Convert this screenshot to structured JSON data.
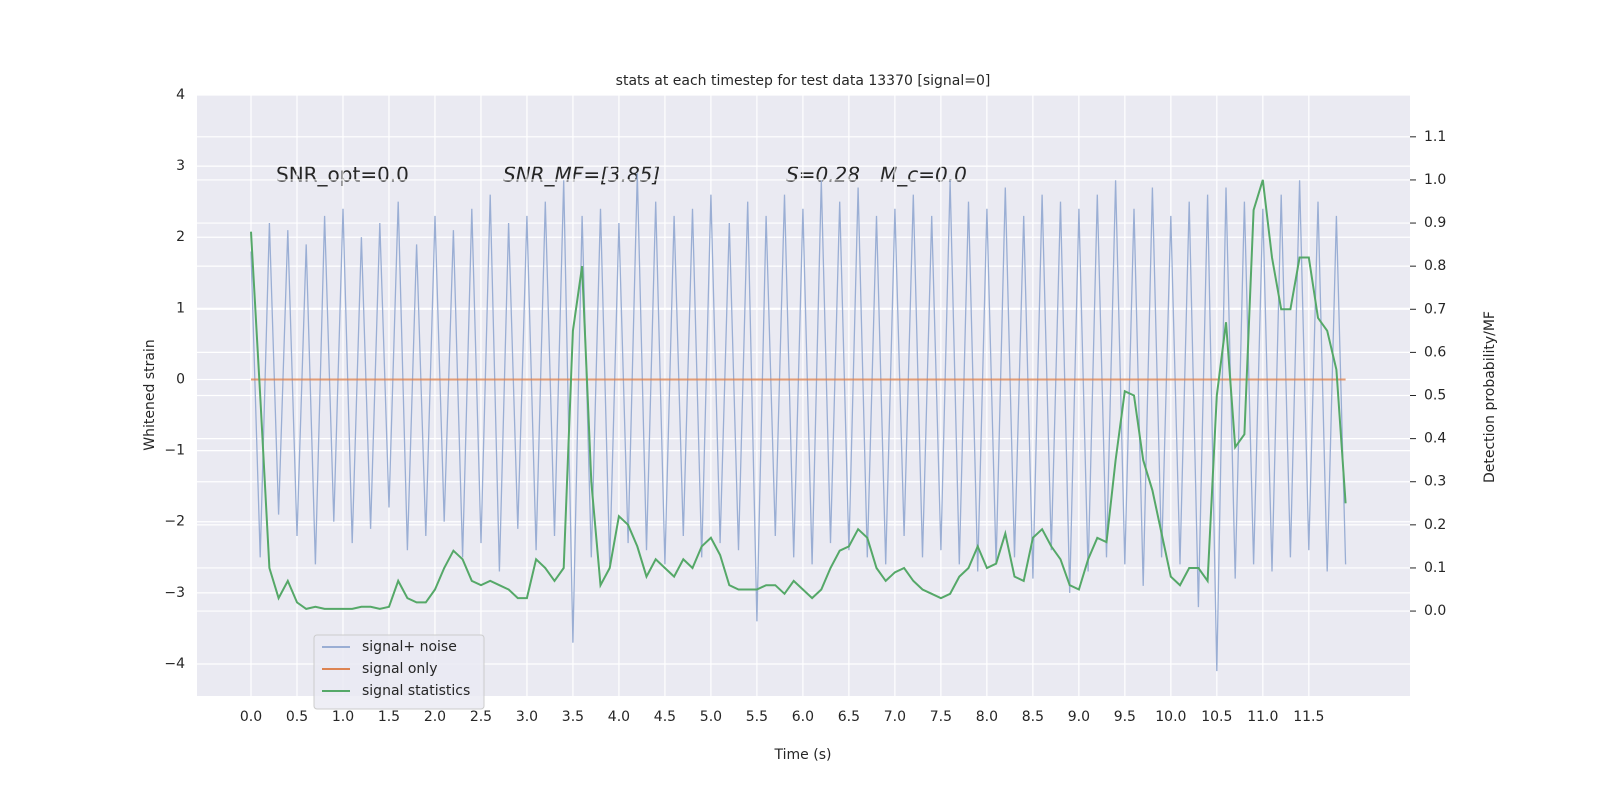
{
  "chart_data": {
    "type": "line",
    "title": "stats at each timestep for test data 13370 [signal=0]",
    "x_label": "Time (s)",
    "y_label": "Whitened strain",
    "y2_label": "Detection probability/MF",
    "annotations": [
      "SNR_opt=0.0",
      "SNR_MF=[3.85]",
      "S=0.28",
      "M_c=0.0"
    ],
    "legend": "lower left",
    "grid": true,
    "xlim": [
      -0.587,
      12.6
    ],
    "ylim": [
      -4.45,
      4.0
    ],
    "y2lim": [
      -0.197,
      1.197
    ],
    "xticks": [
      {
        "value": 0,
        "label": "0.0"
      },
      {
        "value": 0.5,
        "label": "0.5"
      },
      {
        "value": 1,
        "label": "1.0"
      },
      {
        "value": 1.5,
        "label": "1.5"
      },
      {
        "value": 2,
        "label": "2.0"
      },
      {
        "value": 2.5,
        "label": "2.5"
      },
      {
        "value": 3,
        "label": "3.0"
      },
      {
        "value": 3.5,
        "label": "3.5"
      },
      {
        "value": 4,
        "label": "4.0"
      },
      {
        "value": 4.5,
        "label": "4.5"
      },
      {
        "value": 5,
        "label": "5.0"
      },
      {
        "value": 5.5,
        "label": "5.5"
      },
      {
        "value": 6,
        "label": "6.0"
      },
      {
        "value": 6.5,
        "label": "6.5"
      },
      {
        "value": 7,
        "label": "7.0"
      },
      {
        "value": 7.5,
        "label": "7.5"
      },
      {
        "value": 8,
        "label": "8.0"
      },
      {
        "value": 8.5,
        "label": "8.5"
      },
      {
        "value": 9,
        "label": "9.0"
      },
      {
        "value": 9.5,
        "label": "9.5"
      },
      {
        "value": 10,
        "label": "10.0"
      },
      {
        "value": 10.5,
        "label": "10.5"
      },
      {
        "value": 11,
        "label": "11.0"
      },
      {
        "value": 11.5,
        "label": "11.5"
      }
    ],
    "yticks": [
      {
        "value": -4,
        "label": "−4"
      },
      {
        "value": -3,
        "label": "−3"
      },
      {
        "value": -2,
        "label": "−2"
      },
      {
        "value": -1,
        "label": "−1"
      },
      0,
      1,
      2,
      3,
      4
    ],
    "y2ticks": [
      {
        "value": 0,
        "label": "0.0"
      },
      {
        "value": 0.1,
        "label": "0.1"
      },
      {
        "value": 0.2,
        "label": "0.2"
      },
      {
        "value": 0.3,
        "label": "0.3"
      },
      {
        "value": 0.4,
        "label": "0.4"
      },
      {
        "value": 0.5,
        "label": "0.5"
      },
      {
        "value": 0.6,
        "label": "0.6"
      },
      {
        "value": 0.7,
        "label": "0.7"
      },
      {
        "value": 0.8,
        "label": "0.8"
      },
      {
        "value": 0.9,
        "label": "0.9"
      },
      {
        "value": 1,
        "label": "1.0"
      },
      {
        "value": 1.1,
        "label": "1.1"
      }
    ],
    "x": [
      0,
      0.1,
      0.2,
      0.3,
      0.4,
      0.5,
      0.6,
      0.7,
      0.8,
      0.9,
      1,
      1.1,
      1.2,
      1.3,
      1.4,
      1.5,
      1.6,
      1.7,
      1.8,
      1.9,
      2,
      2.1,
      2.2,
      2.3,
      2.4,
      2.5,
      2.6,
      2.7,
      2.8,
      2.9,
      3,
      3.1,
      3.2,
      3.3,
      3.4,
      3.5,
      3.6,
      3.7,
      3.8,
      3.9,
      4,
      4.1,
      4.2,
      4.3,
      4.4,
      4.5,
      4.6,
      4.7,
      4.8,
      4.9,
      5,
      5.1,
      5.2,
      5.3,
      5.4,
      5.5,
      5.6,
      5.7,
      5.8,
      5.9,
      6,
      6.1,
      6.2,
      6.3,
      6.4,
      6.5,
      6.6,
      6.7,
      6.8,
      6.9,
      7,
      7.1,
      7.2,
      7.3,
      7.4,
      7.5,
      7.6,
      7.7,
      7.8,
      7.9,
      8,
      8.1,
      8.2,
      8.3,
      8.4,
      8.5,
      8.6,
      8.7,
      8.8,
      8.9,
      9,
      9.1,
      9.2,
      9.3,
      9.4,
      9.5,
      9.6,
      9.7,
      9.8,
      9.9,
      10,
      10.1,
      10.2,
      10.3,
      10.4,
      10.5,
      10.6,
      10.7,
      10.8,
      10.9,
      11,
      11.1,
      11.2,
      11.3,
      11.4,
      11.5,
      11.6,
      11.7,
      11.8,
      11.9
    ],
    "series": [
      {
        "name": "signal+ noise",
        "color": "#9aaed4",
        "values": [
          1.8,
          -2.5,
          2.2,
          -1.9,
          2.1,
          -2.2,
          1.9,
          -2.6,
          2.3,
          -2.0,
          2.4,
          -2.3,
          2.0,
          -2.1,
          2.2,
          -1.8,
          2.5,
          -2.4,
          1.9,
          -2.2,
          2.3,
          -2.0,
          2.1,
          -2.5,
          2.4,
          -2.3,
          2.6,
          -2.7,
          2.2,
          -2.1,
          2.3,
          -2.4,
          2.5,
          -2.2,
          2.8,
          -3.7,
          2.3,
          -2.5,
          2.4,
          -2.6,
          2.2,
          -2.3,
          2.9,
          -2.4,
          2.5,
          -2.6,
          2.3,
          -2.2,
          2.4,
          -2.5,
          2.6,
          -2.3,
          2.2,
          -2.4,
          2.5,
          -3.4,
          2.3,
          -2.2,
          2.6,
          -2.5,
          2.4,
          -2.6,
          2.8,
          -2.3,
          2.5,
          -2.4,
          2.7,
          -2.5,
          2.3,
          -2.6,
          2.4,
          -2.2,
          2.6,
          -2.5,
          2.3,
          -2.4,
          2.8,
          -2.6,
          2.5,
          -2.7,
          2.4,
          -2.6,
          2.7,
          -2.5,
          2.3,
          -2.8,
          2.6,
          -2.4,
          2.5,
          -3.0,
          2.4,
          -2.7,
          2.6,
          -2.5,
          2.8,
          -2.6,
          2.4,
          -2.9,
          2.7,
          -2.5,
          2.3,
          -2.6,
          2.5,
          -3.2,
          2.6,
          -4.1,
          2.7,
          -2.8,
          2.5,
          -2.6,
          2.4,
          -2.7,
          2.6,
          -2.5,
          2.8,
          -2.4,
          2.5,
          -2.7,
          2.3,
          -2.6
        ]
      },
      {
        "name": "signal only",
        "color": "#dd8452",
        "values": [
          0,
          0,
          0,
          0,
          0,
          0,
          0,
          0,
          0,
          0,
          0,
          0,
          0,
          0,
          0,
          0,
          0,
          0,
          0,
          0,
          0,
          0,
          0,
          0,
          0,
          0,
          0,
          0,
          0,
          0,
          0,
          0,
          0,
          0,
          0,
          0,
          0,
          0,
          0,
          0,
          0,
          0,
          0,
          0,
          0,
          0,
          0,
          0,
          0,
          0,
          0,
          0,
          0,
          0,
          0,
          0,
          0,
          0,
          0,
          0,
          0,
          0,
          0,
          0,
          0,
          0,
          0,
          0,
          0,
          0,
          0,
          0,
          0,
          0,
          0,
          0,
          0,
          0,
          0,
          0,
          0,
          0,
          0,
          0,
          0,
          0,
          0,
          0,
          0,
          0,
          0,
          0,
          0,
          0,
          0,
          0,
          0,
          0,
          0,
          0,
          0,
          0,
          0,
          0,
          0,
          0,
          0,
          0,
          0,
          0,
          0,
          0,
          0,
          0,
          0,
          0,
          0,
          0,
          0,
          0
        ]
      },
      {
        "name": "signal statistics",
        "color": "#55a868",
        "axis": "y2",
        "values": [
          0.88,
          0.5,
          0.1,
          0.03,
          0.07,
          0.02,
          0.005,
          0.01,
          0.005,
          0.005,
          0.005,
          0.005,
          0.01,
          0.01,
          0.005,
          0.01,
          0.07,
          0.03,
          0.02,
          0.02,
          0.05,
          0.1,
          0.14,
          0.12,
          0.07,
          0.06,
          0.07,
          0.06,
          0.05,
          0.03,
          0.03,
          0.12,
          0.1,
          0.07,
          0.1,
          0.65,
          0.8,
          0.3,
          0.06,
          0.1,
          0.22,
          0.2,
          0.15,
          0.08,
          0.12,
          0.1,
          0.08,
          0.12,
          0.1,
          0.15,
          0.17,
          0.13,
          0.06,
          0.05,
          0.05,
          0.05,
          0.06,
          0.06,
          0.04,
          0.07,
          0.05,
          0.03,
          0.05,
          0.1,
          0.14,
          0.15,
          0.19,
          0.17,
          0.1,
          0.07,
          0.09,
          0.1,
          0.07,
          0.05,
          0.04,
          0.03,
          0.04,
          0.08,
          0.1,
          0.15,
          0.1,
          0.11,
          0.18,
          0.08,
          0.07,
          0.17,
          0.19,
          0.15,
          0.12,
          0.06,
          0.05,
          0.12,
          0.17,
          0.16,
          0.35,
          0.51,
          0.5,
          0.35,
          0.28,
          0.18,
          0.08,
          0.06,
          0.1,
          0.1,
          0.07,
          0.5,
          0.67,
          0.38,
          0.41,
          0.93,
          1.0,
          0.82,
          0.7,
          0.7,
          0.82,
          0.82,
          0.68,
          0.65,
          0.56,
          0.25
        ]
      }
    ]
  }
}
